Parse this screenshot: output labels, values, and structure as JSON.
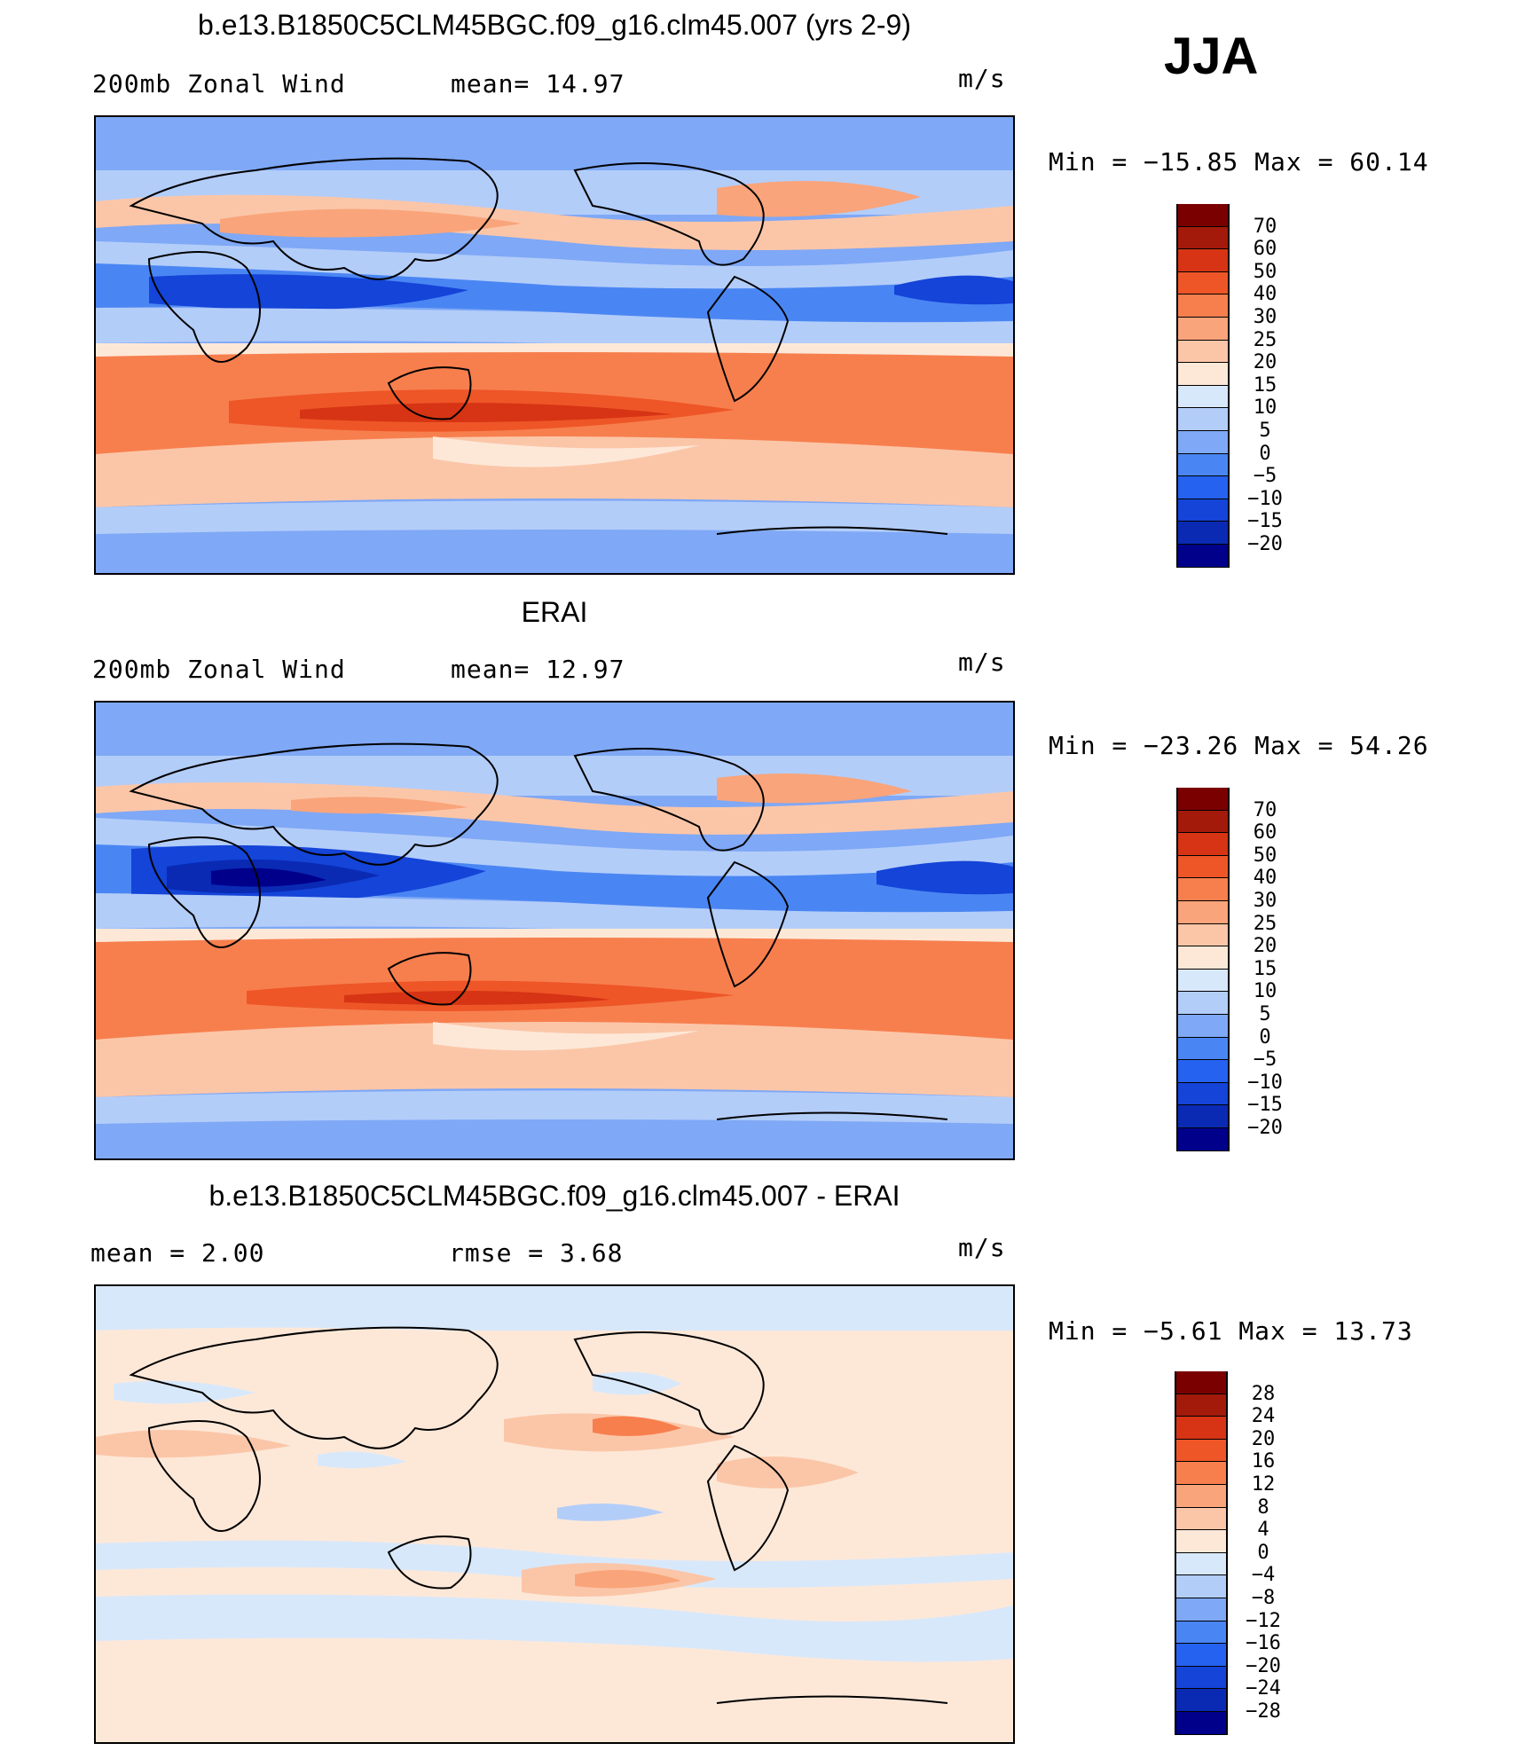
{
  "header": {
    "season": "JJA"
  },
  "colors": {
    "abs_scale": [
      "#00008b",
      "#0a2ab4",
      "#1444d8",
      "#2462ef",
      "#4a86f3",
      "#7fa8f6",
      "#b3cdf9",
      "#d8e8fb",
      "#fde8d8",
      "#fbc6a8",
      "#f9a47a",
      "#f77f4e",
      "#ee5627",
      "#d63414",
      "#a31a0a",
      "#7a0000"
    ],
    "diff_scale": [
      "#00008b",
      "#0a2ab4",
      "#1444d8",
      "#2462ef",
      "#4a86f3",
      "#7fa8f6",
      "#b3cdf9",
      "#d8e8fb",
      "#fde8d8",
      "#fbc6a8",
      "#f9a47a",
      "#f77f4e",
      "#ee5627",
      "#d63414",
      "#a31a0a",
      "#7a0000"
    ]
  },
  "panels": [
    {
      "title": "b.e13.B1850C5CLM45BGC.f09_g16.clm45.007 (yrs 2-9)",
      "left_text": "200mb Zonal Wind",
      "mid_text": "mean=   14.97",
      "units": "m/s",
      "minmax": "Min = −15.85 Max =   60.14"
    },
    {
      "title": "ERAI",
      "left_text": "200mb Zonal Wind",
      "mid_text": "mean=   12.97",
      "units": "m/s",
      "minmax": "Min = −23.26 Max =   54.26"
    },
    {
      "title": "b.e13.B1850C5CLM45BGC.f09_g16.clm45.007 - ERAI",
      "left_text": "mean =    2.00",
      "mid_text": "rmse =    3.68",
      "units": "m/s",
      "minmax": "Min =   −5.61 Max =   13.73"
    }
  ],
  "chart_data": [
    {
      "type": "heatmap",
      "title": "b.e13.B1850C5CLM45BGC.f09_g16.clm45.007 (yrs 2-9)",
      "variable": "200mb Zonal Wind",
      "units": "m/s",
      "mean": 14.97,
      "min": -15.85,
      "max": 60.14,
      "colorbar_levels": [
        70,
        60,
        50,
        40,
        30,
        25,
        20,
        15,
        10,
        5,
        0,
        -5,
        -10,
        -15,
        -20
      ],
      "colorbar_labels": [
        "70",
        "60",
        "50",
        "40",
        "30",
        "25",
        "20",
        "15",
        "10",
        "5",
        "0",
        "−5",
        "−10",
        "−15",
        "−20"
      ]
    },
    {
      "type": "heatmap",
      "title": "ERAI",
      "variable": "200mb Zonal Wind",
      "units": "m/s",
      "mean": 12.97,
      "min": -23.26,
      "max": 54.26,
      "colorbar_levels": [
        70,
        60,
        50,
        40,
        30,
        25,
        20,
        15,
        10,
        5,
        0,
        -5,
        -10,
        -15,
        -20
      ],
      "colorbar_labels": [
        "70",
        "60",
        "50",
        "40",
        "30",
        "25",
        "20",
        "15",
        "10",
        "5",
        "0",
        "−5",
        "−10",
        "−15",
        "−20"
      ]
    },
    {
      "type": "heatmap",
      "title": "b.e13.B1850C5CLM45BGC.f09_g16.clm45.007 - ERAI",
      "units": "m/s",
      "mean": 2.0,
      "rmse": 3.68,
      "min": -5.61,
      "max": 13.73,
      "colorbar_levels": [
        28,
        24,
        20,
        16,
        12,
        8,
        4,
        0,
        -4,
        -8,
        -12,
        -16,
        -20,
        -24,
        -28
      ],
      "colorbar_labels": [
        "28",
        "24",
        "20",
        "16",
        "12",
        "8",
        "4",
        "0",
        "−4",
        "−8",
        "−12",
        "−16",
        "−20",
        "−24",
        "−28"
      ]
    }
  ]
}
